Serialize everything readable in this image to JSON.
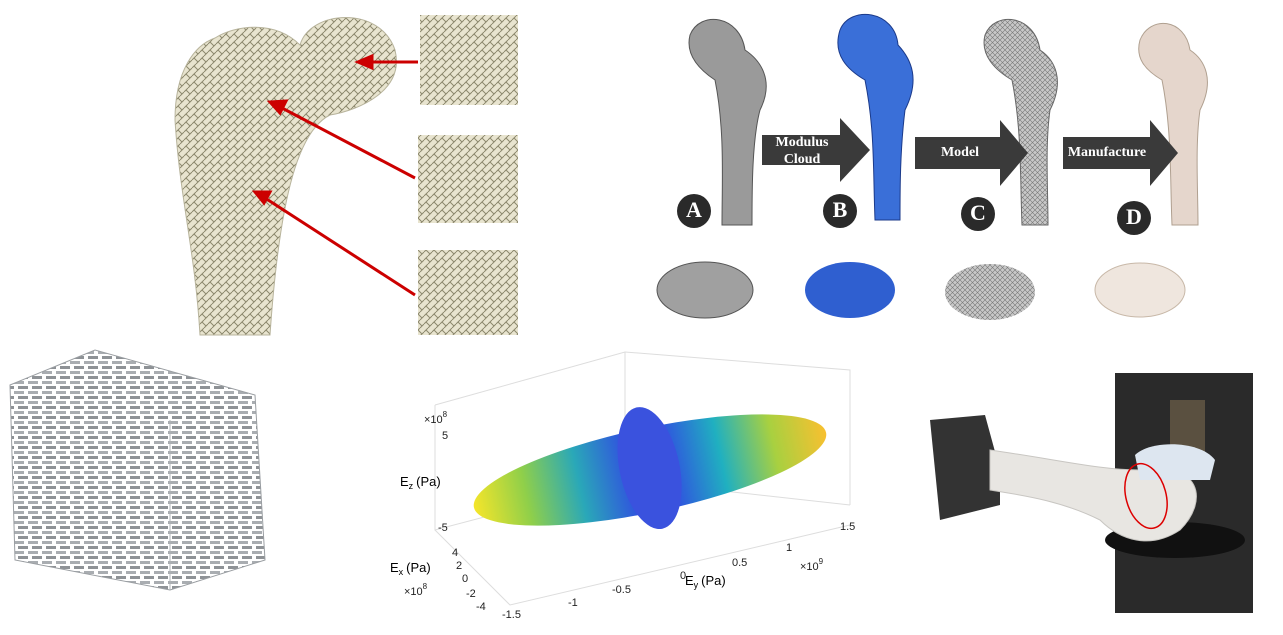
{
  "pipeline": {
    "arrows": [
      {
        "lines": [
          "Modulus",
          "Cloud"
        ]
      },
      {
        "lines": [
          "Model"
        ]
      },
      {
        "lines": [
          "Manufacture"
        ]
      }
    ],
    "steps": [
      "A",
      "B",
      "C",
      "D"
    ]
  },
  "plot": {
    "z_axis": {
      "symbol": "E",
      "subscript": "z",
      "unit": "(Pa)",
      "multiplier": {
        "base": "×10",
        "exponent": "8"
      },
      "ticks": [
        5,
        -5
      ]
    },
    "x_axis": {
      "symbol": "E",
      "subscript": "x",
      "unit": "(Pa)",
      "multiplier": {
        "base": "×10",
        "exponent": "8"
      },
      "ticks": [
        4,
        2,
        0,
        -2,
        -4
      ]
    },
    "y_axis": {
      "symbol": "E",
      "subscript": "y",
      "unit": "(Pa)",
      "multiplier": {
        "base": "×10",
        "exponent": "9"
      },
      "ticks": [
        -1.5,
        -1,
        -0.5,
        0,
        0.5,
        1,
        1.5
      ]
    }
  }
}
